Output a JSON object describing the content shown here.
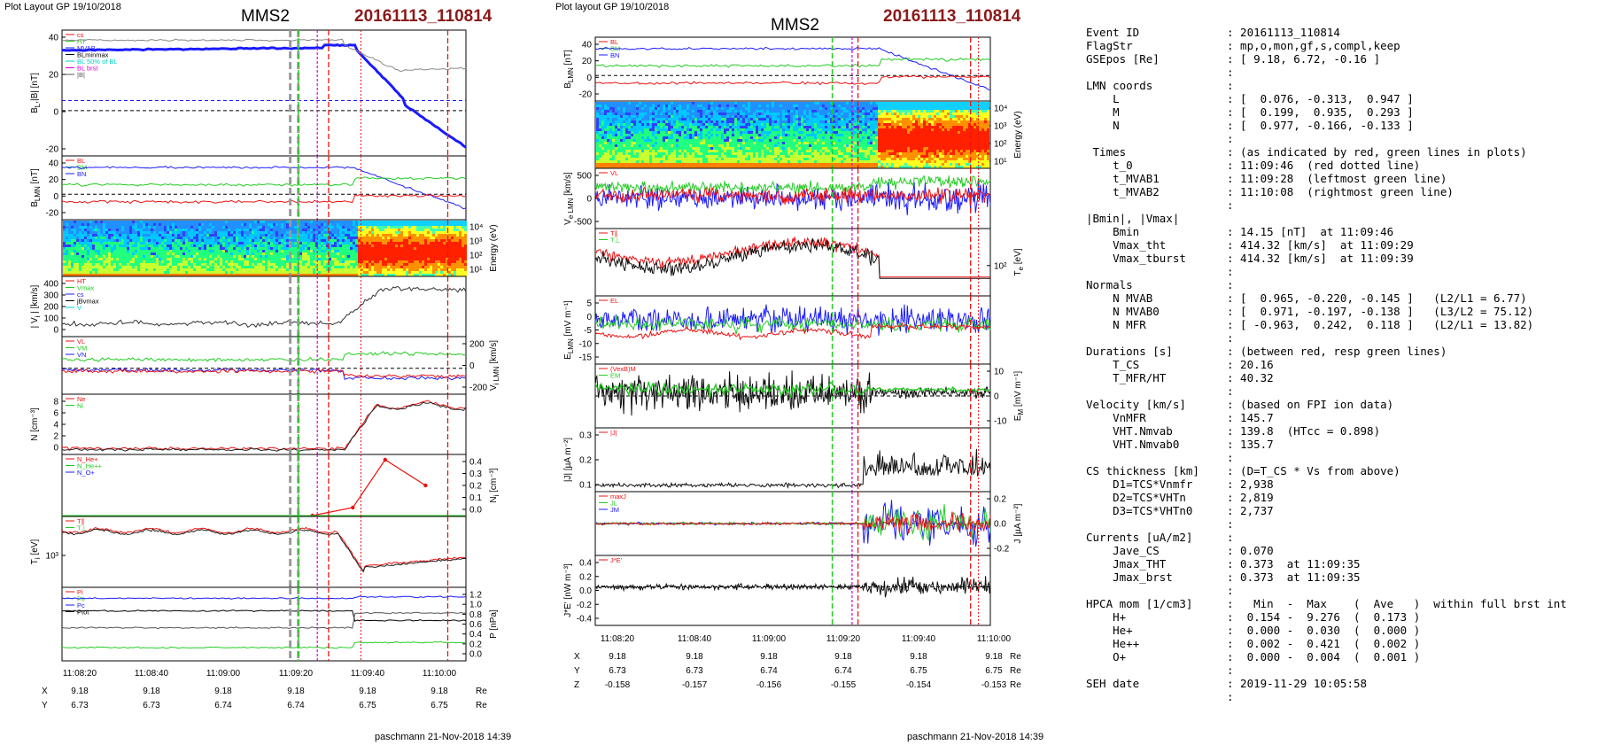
{
  "left": {
    "header": "Plot Layout GP 19/10/2018",
    "spacecraft": "MMS2",
    "event": "20161113_110814",
    "footer": "paschmann 21-Nov-2018 14:39",
    "xticks": [
      "11:08:20",
      "11:08:40",
      "11:09:00",
      "11:09:20",
      "11:09:40",
      "11:10:00"
    ],
    "pos": {
      "X": [
        "9.18",
        "9.18",
        "9.18",
        "9.18",
        "9.18",
        "9.18"
      ],
      "Y": [
        "6.73",
        "6.73",
        "6.74",
        "6.74",
        "6.75",
        "6.75"
      ],
      "Z": [
        "-0.158",
        "-0.157",
        "-0.156",
        "-0.155",
        "-0.154",
        "-0.153"
      ],
      "unit": "Re"
    },
    "panels": [
      {
        "id": "B",
        "ylabel": "B_L, |B| [nT]",
        "ylabel_main": "B",
        "ylabel_sub": "L",
        "ylabel_rest": ",|B| [nT]",
        "yticks": [
          "40",
          "20",
          "0",
          "-20"
        ],
        "ylim": [
          -32,
          45
        ],
        "legend": [
          "cs",
          "HT",
          "MVAB",
          "BLminmax",
          "BL 50% of BL",
          "BL brst",
          "|B|"
        ],
        "side": "left"
      },
      {
        "id": "Blmn",
        "ylabel": "B_LMN [nT]",
        "ylabel_main": "B",
        "ylabel_sub": "LMN",
        "ylabel_rest": " [nT]",
        "yticks": [
          "40",
          "20",
          "0",
          "-20"
        ],
        "ylim": [
          -32,
          45
        ],
        "legend": [
          "BL",
          "BM",
          "BN"
        ],
        "side": "left"
      },
      {
        "id": "spec",
        "ylabel": "Energy (eV)",
        "yticks": [
          "10⁴",
          "10³",
          "10²",
          "10¹"
        ],
        "side": "right"
      },
      {
        "id": "Vi",
        "ylabel": "| V_i | [km/s]",
        "ylabel_main": "| V",
        "ylabel_sub": "i",
        "ylabel_rest": " | [km/s]",
        "yticks": [
          "400",
          "300",
          "200",
          "100",
          "0"
        ],
        "ylim": [
          0,
          420
        ],
        "legend": [
          "HT",
          "Vmax",
          "cs",
          "jBvmax",
          "V"
        ],
        "side": "left"
      },
      {
        "id": "Vilmn",
        "ylabel": "V_i LMN [km/s]",
        "ylabel_main": "V",
        "ylabel_sub": "i LMN",
        "ylabel_rest": " [km/s]",
        "yticks": [
          "200",
          "0",
          "-200"
        ],
        "ylim": [
          -260,
          300
        ],
        "legend": [
          "VL",
          "VM",
          "VN"
        ],
        "side": "right"
      },
      {
        "id": "N",
        "ylabel": "N [cm⁻³]",
        "yticks": [
          "8",
          "6",
          "4",
          "2",
          "0"
        ],
        "ylim": [
          0,
          9.5
        ],
        "legend": [
          "Ne",
          "Ni"
        ],
        "side": "left"
      },
      {
        "id": "Nhpca",
        "ylabel": "N_i [cm⁻³]",
        "ylabel_main": "N",
        "ylabel_sub": "i",
        "ylabel_rest": " [cm⁻³]",
        "yticks": [
          "0.4",
          "0.3",
          "0.2",
          "0.1",
          "0.0"
        ],
        "ylim": [
          0,
          0.42
        ],
        "legend": [
          "N_He+",
          "N_He++",
          "N_O+"
        ],
        "side": "right"
      },
      {
        "id": "Ti",
        "ylabel": "T_i [eV]",
        "ylabel_main": "T",
        "ylabel_sub": "i",
        "ylabel_rest": " [eV]",
        "yticks": [
          "10³"
        ],
        "legend": [
          "T∥",
          "T⊥"
        ],
        "side": "left"
      },
      {
        "id": "P",
        "ylabel": "P [nPa]",
        "yticks": [
          "1.2",
          "1.0",
          "0.8",
          "0.6",
          "0.4",
          "0.2",
          "0.0"
        ],
        "ylim": [
          0,
          1.25
        ],
        "legend": [
          "Pi",
          "Pe",
          "Pc",
          "Ptot"
        ],
        "side": "right"
      }
    ]
  },
  "middle": {
    "header": "Plot layout GP 19/10/2018",
    "spacecraft": "MMS2",
    "event": "20161113_110814",
    "footer": "paschmann 21-Nov-2018 14:39",
    "xticks": [
      "11:08:20",
      "11:08:40",
      "11:09:00",
      "11:09:20",
      "11:09:40",
      "11:10:00"
    ],
    "pos": {
      "X": [
        "9.18",
        "9.18",
        "9.18",
        "9.18",
        "9.18",
        "9.18"
      ],
      "Y": [
        "6.73",
        "6.73",
        "6.74",
        "6.74",
        "6.75",
        "6.75"
      ],
      "Z": [
        "-0.158",
        "-0.157",
        "-0.156",
        "-0.155",
        "-0.154",
        "-0.153"
      ],
      "unit": "Re"
    },
    "panels": [
      {
        "id": "Blmn",
        "ylabel": "B_LMN [nT]",
        "ylabel_main": "B",
        "ylabel_sub": "LMN",
        "ylabel_rest": " [nT]",
        "yticks": [
          "40",
          "20",
          "0",
          "-20"
        ],
        "ylim": [
          -32,
          45
        ],
        "legend": [
          "BL",
          "BM",
          "BN"
        ],
        "side": "left"
      },
      {
        "id": "espec",
        "ylabel": "Energy (eV)",
        "yticks": [
          "10⁴",
          "10³",
          "10²",
          "10¹"
        ],
        "side": "right"
      },
      {
        "id": "Ve",
        "ylabel": "V_e LMN [km/s]",
        "ylabel_main": "V",
        "ylabel_sub": "e LMN",
        "ylabel_rest": " [km/s]",
        "yticks": [
          "500",
          "0",
          "-500"
        ],
        "ylim": [
          -800,
          800
        ],
        "legend": [
          "VL"
        ],
        "side": "left"
      },
      {
        "id": "Te",
        "ylabel": "T_e [eV]",
        "ylabel_main": "T",
        "ylabel_sub": "e",
        "ylabel_rest": " [eV]",
        "yticks": [
          "10²"
        ],
        "legend": [
          "T∥",
          "T⊥"
        ],
        "side": "right"
      },
      {
        "id": "E",
        "ylabel": "E_LMN [mV m⁻¹]",
        "ylabel_main": "E",
        "ylabel_sub": "LMN",
        "ylabel_rest": " [mV m⁻¹]",
        "yticks": [
          "5",
          "0",
          "-5",
          "-10",
          "-15"
        ],
        "ylim": [
          -18,
          8
        ],
        "legend": [
          "EL"
        ],
        "side": "left"
      },
      {
        "id": "EM",
        "ylabel": "E_M [mV m⁻¹]",
        "ylabel_main": "E",
        "ylabel_sub": "M",
        "ylabel_rest": " [mV m⁻¹]",
        "yticks": [
          "10",
          "0",
          "-10"
        ],
        "ylim": [
          -18,
          14
        ],
        "legend": [
          "(VexB)M",
          "EM"
        ],
        "side": "right"
      },
      {
        "id": "J",
        "ylabel": "|J| [µA m⁻²]",
        "yticks": [
          "0.3",
          "0.2",
          "0.1"
        ],
        "ylim": [
          0,
          0.36
        ],
        "legend": [
          "|J|"
        ],
        "side": "left"
      },
      {
        "id": "Jlmn",
        "ylabel": "J [µA m⁻²]",
        "yticks": [
          "0.2",
          "0.0",
          "-0.2"
        ],
        "ylim": [
          -0.35,
          0.3
        ],
        "legend": [
          "maxJ",
          "JL",
          "JM"
        ],
        "side": "right"
      },
      {
        "id": "JE",
        "ylabel": "J*E' [nW m⁻³]",
        "yticks": [
          "0.4",
          "0.2",
          "0.0",
          "-0.2",
          "-0.4"
        ],
        "ylim": [
          -0.52,
          0.45
        ],
        "legend": [
          "J*E'"
        ],
        "side": "left"
      }
    ]
  },
  "summary": [
    [
      "",
      ""
    ],
    [
      "Event ID",
      ": 20161113_110814"
    ],
    [
      "FlagStr",
      ": mp,o,mon,gf,s,compl,keep"
    ],
    [
      "GSEpos [Re]",
      ": [ 9.18, 6.72, -0.16 ]"
    ],
    [
      "",
      ":"
    ],
    [
      "LMN coords",
      ":"
    ],
    [
      "    L",
      ": [  0.076, -0.313,  0.947 ]"
    ],
    [
      "    M",
      ": [  0.199,  0.935,  0.293 ]"
    ],
    [
      "    N",
      ": [  0.977, -0.166, -0.133 ]"
    ],
    [
      "",
      ":"
    ],
    [
      " Times",
      ": (as indicated by red, green lines in plots)"
    ],
    [
      "    t_0",
      ": 11:09:46  (red dotted line)"
    ],
    [
      "    t_MVAB1",
      ": 11:09:28  (leftmost green line)"
    ],
    [
      "    t_MVAB2",
      ": 11:10:08  (rightmost green line)"
    ],
    [
      "",
      ":"
    ],
    [
      "|Bmin|, |Vmax|",
      ""
    ],
    [
      "    Bmin",
      ": 14.15 [nT]  at 11:09:46"
    ],
    [
      "    Vmax_tht",
      ": 414.32 [km/s]  at 11:09:29"
    ],
    [
      "    Vmax_tburst",
      ": 414.32 [km/s]  at 11:09:39"
    ],
    [
      "",
      ":"
    ],
    [
      "Normals",
      ":"
    ],
    [
      "    N MVAB",
      ": [  0.965, -0.220, -0.145 ]   (L2/L1 = 6.77)"
    ],
    [
      "    N MVAB0",
      ": [  0.971, -0.197, -0.138 ]   (L3/L2 = 75.12)"
    ],
    [
      "    N MFR",
      ": [ -0.963,  0.242,  0.118 ]   (L2/L1 = 13.82)"
    ],
    [
      "",
      ":"
    ],
    [
      "Durations [s]",
      ": (between red, resp green lines)"
    ],
    [
      "    T_CS",
      ": 20.16"
    ],
    [
      "    T_MFR/HT",
      ": 40.32"
    ],
    [
      "",
      ":"
    ],
    [
      "Velocity [km/s]",
      ": (based on FPI ion data)"
    ],
    [
      "    VnMFR",
      ": 145.7"
    ],
    [
      "    VHT.Nmvab",
      ": 139.8  (HTcc = 0.898)"
    ],
    [
      "    VHT.Nmvab0",
      ": 135.7"
    ],
    [
      "",
      ":"
    ],
    [
      "CS thickness [km]",
      ": (D=T_CS * Vs from above)"
    ],
    [
      "    D1=TCS*Vnmfr",
      ": 2,938"
    ],
    [
      "    D2=TCS*VHTn",
      ": 2,819"
    ],
    [
      "    D3=TCS*VHTn0",
      ": 2,737"
    ],
    [
      "",
      ":"
    ],
    [
      "Currents [uA/m2]",
      ":"
    ],
    [
      "    Jave_CS",
      ": 0.070"
    ],
    [
      "    Jmax_THT",
      ": 0.373  at 11:09:35"
    ],
    [
      "    Jmax_brst",
      ": 0.373  at 11:09:35"
    ],
    [
      "",
      ":"
    ],
    [
      "HPCA mom [1/cm3]",
      ":   Min  -  Max    (  Ave   )  within full brst int"
    ],
    [
      "    H+",
      ":  0.154 -  9.276  (  0.173 )"
    ],
    [
      "    He+",
      ":  0.000 -  0.030  (  0.000 )"
    ],
    [
      "    He++",
      ":  0.002 -  0.421  (  0.002 )"
    ],
    [
      "    O+",
      ":  0.000 -  0.004  (  0.001 )"
    ],
    [
      "",
      ":"
    ],
    [
      "SEH date",
      ": 2019-11-29 10:05:58"
    ],
    [
      "",
      ":"
    ]
  ],
  "colors": {
    "event": "#8b1a1a",
    "blue": "#1a1aff",
    "green": "#22cc22",
    "red": "#ee1111",
    "magenta": "#dd00dd",
    "cyan": "#00cccc",
    "grey": "#999999"
  },
  "chart_data": {
    "type": "line",
    "x": [
      "11:08:20",
      "11:08:40",
      "11:09:00",
      "11:09:20",
      "11:09:40",
      "11:10:00"
    ],
    "vertical_markers": {
      "t_MVAB1": "11:09:28",
      "t_0": "11:09:46",
      "t_MVAB2": "11:10:08"
    },
    "series": [
      {
        "name": "BL",
        "values": [
          36,
          37,
          38,
          40,
          10,
          -26
        ]
      },
      {
        "name": "Ne",
        "values": [
          0.3,
          0.3,
          0.3,
          0.4,
          7.5,
          7.2
        ]
      },
      {
        "name": "N He++",
        "values": [
          0.0,
          0.0,
          0.0,
          0.0,
          0.4,
          0.22
        ]
      }
    ]
  }
}
